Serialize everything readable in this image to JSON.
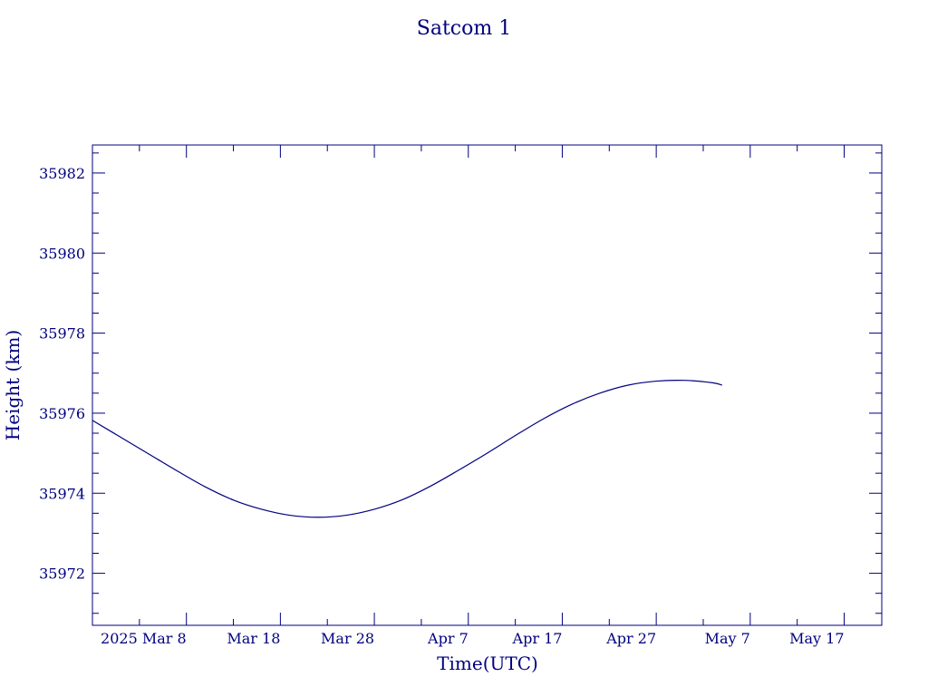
{
  "chart_data": {
    "type": "line",
    "title": "Satcom 1",
    "xlabel": "Time(UTC)",
    "ylabel": "Height (km)",
    "x_axis": {
      "type": "date",
      "range": [
        "2025-02-26",
        "2025-05-21"
      ],
      "ticks": [
        {
          "date": "2025-03-08",
          "label": "2025 Mar  8"
        },
        {
          "date": "2025-03-18",
          "label": "Mar 18"
        },
        {
          "date": "2025-03-28",
          "label": "Mar 28"
        },
        {
          "date": "2025-04-07",
          "label": "Apr  7"
        },
        {
          "date": "2025-04-17",
          "label": "Apr 17"
        },
        {
          "date": "2025-04-27",
          "label": "Apr 27"
        },
        {
          "date": "2025-05-07",
          "label": "May  7"
        },
        {
          "date": "2025-05-17",
          "label": "May 17"
        }
      ],
      "minor_tick_days": 5
    },
    "y_axis": {
      "range": [
        35970.7,
        35982.7
      ],
      "ticks": [
        35972,
        35974,
        35976,
        35978,
        35980,
        35982
      ],
      "tick_labels": [
        "35972",
        "35974",
        "35976",
        "35978",
        "35980",
        "35982"
      ],
      "minor_step": 0.5
    },
    "grid": false,
    "color": "#00007f",
    "series": [
      {
        "x": [
          "2025-02-26",
          "2025-03-01",
          "2025-03-04",
          "2025-03-07",
          "2025-03-10",
          "2025-03-13",
          "2025-03-16",
          "2025-03-19",
          "2025-03-22",
          "2025-03-25",
          "2025-03-28",
          "2025-03-31",
          "2025-04-03",
          "2025-04-06",
          "2025-04-09",
          "2025-04-12",
          "2025-04-15",
          "2025-04-18",
          "2025-04-21",
          "2025-04-24",
          "2025-04-27",
          "2025-04-30",
          "2025-05-03",
          "2025-05-04"
        ],
        "y": [
          35975.82,
          35975.4,
          35974.98,
          35974.56,
          35974.16,
          35973.83,
          35973.6,
          35973.45,
          35973.4,
          35973.45,
          35973.6,
          35973.84,
          35974.18,
          35974.58,
          35975.0,
          35975.44,
          35975.86,
          35976.22,
          35976.5,
          35976.7,
          35976.8,
          35976.82,
          35976.76,
          35976.7
        ]
      }
    ]
  }
}
